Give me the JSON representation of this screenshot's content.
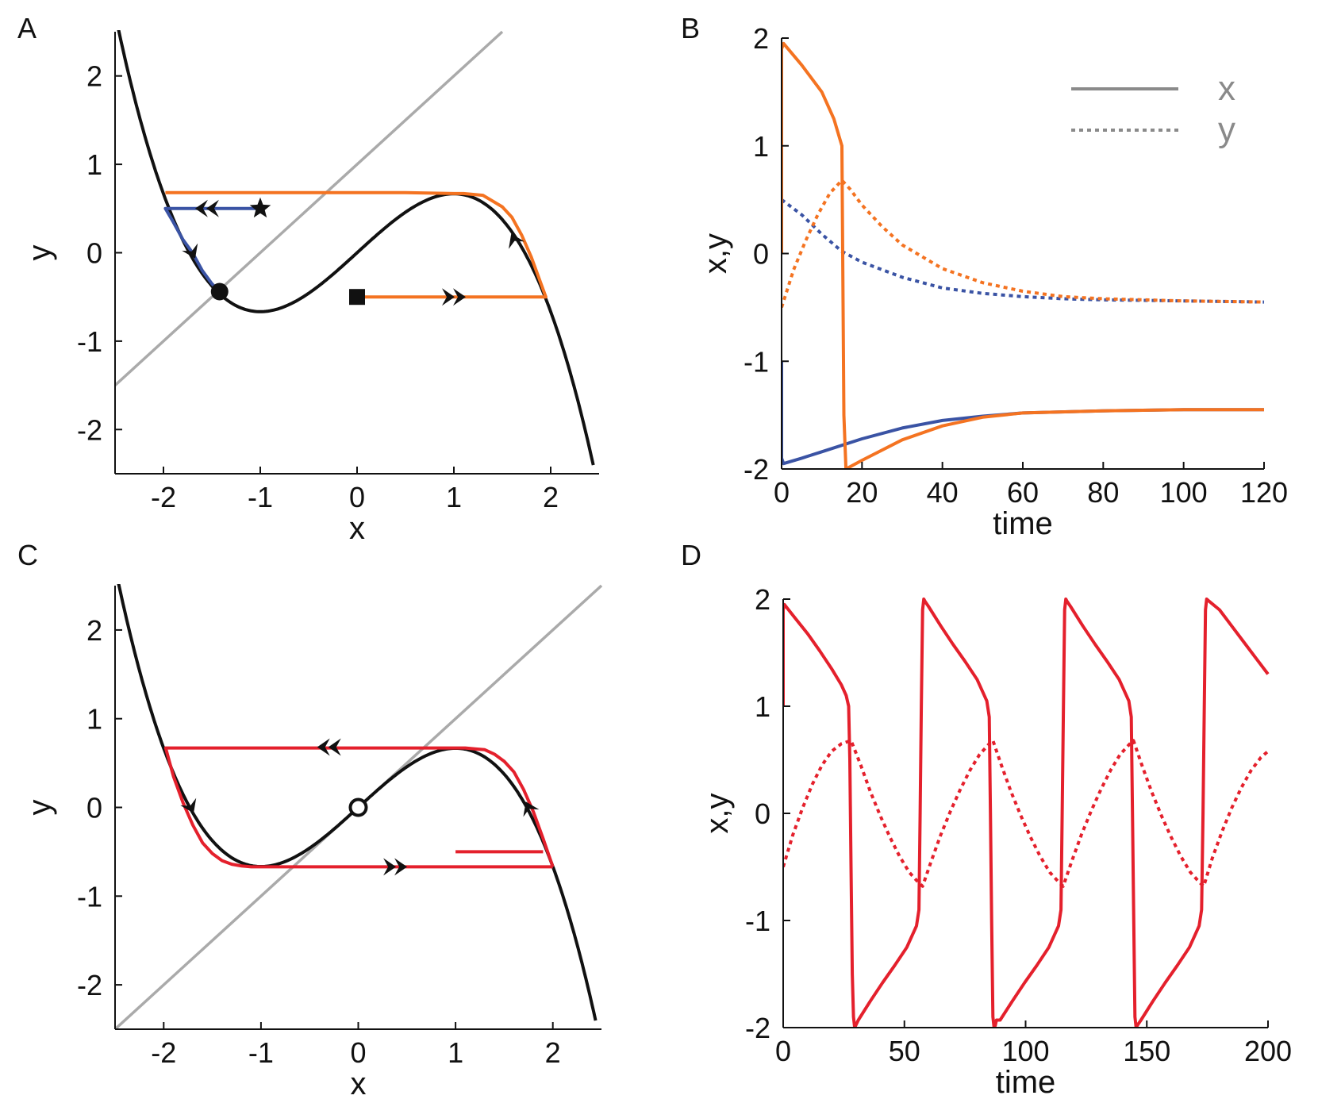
{
  "chart_data": [
    {
      "panel": "A",
      "type": "line",
      "xlabel": "x",
      "ylabel": "y",
      "xlim": [
        -2.5,
        2.5
      ],
      "ylim": [
        -2.5,
        2.5
      ],
      "xticks": [
        -2,
        -1,
        0,
        1,
        2
      ],
      "yticks": [
        -2,
        -1,
        0,
        1,
        2
      ],
      "nullcline_cubic": {
        "color": "#111111",
        "formula": "y = x - x^3/3",
        "x_range": [
          -2.5,
          2.45
        ]
      },
      "nullcline_linear": {
        "color": "#aaaaaa",
        "formula": "y = x + 1",
        "x_range": [
          -2.5,
          1.5
        ]
      },
      "series": [
        {
          "color": "#3a53a4",
          "x": [
            -1,
            -1.98,
            -1.9,
            -1.8,
            -1.7,
            -1.6,
            -1.5,
            -1.42
          ],
          "y": [
            0.5,
            0.5,
            0.35,
            0.15,
            0.0,
            -0.2,
            -0.35,
            -0.44
          ]
        },
        {
          "color": "#f47321",
          "x": [
            0,
            1.95,
            1.9,
            1.8,
            1.7,
            1.6,
            1.5,
            1.3,
            1.1,
            1.0,
            0.5,
            0,
            -1,
            -1.98
          ],
          "y": [
            -0.5,
            -0.5,
            -0.35,
            -0.05,
            0.2,
            0.4,
            0.52,
            0.65,
            0.67,
            0.67,
            0.68,
            0.68,
            0.68,
            0.68
          ]
        }
      ],
      "markers": [
        {
          "shape": "star",
          "x": -1,
          "y": 0.5
        },
        {
          "shape": "square",
          "x": 0,
          "y": -0.5
        },
        {
          "shape": "circle-filled",
          "x": -1.42,
          "y": -0.44
        }
      ]
    },
    {
      "panel": "B",
      "type": "line",
      "xlabel": "time",
      "ylabel": "x,y",
      "xlim": [
        0,
        120
      ],
      "ylim": [
        -2,
        2
      ],
      "xticks": [
        0,
        20,
        40,
        60,
        80,
        100,
        120
      ],
      "yticks": [
        -2,
        -1,
        0,
        1,
        2
      ],
      "legend": {
        "position": "top-right",
        "entries": [
          {
            "label": "x",
            "style": "solid"
          },
          {
            "label": "y",
            "style": "dotted"
          }
        ]
      },
      "series": [
        {
          "color": "#3a53a4",
          "style": "solid",
          "x": [
            0,
            0,
            0.5,
            5,
            10,
            20,
            30,
            40,
            50,
            60,
            80,
            100,
            120
          ],
          "y": [
            -1,
            -1.9,
            -1.95,
            -1.9,
            -1.84,
            -1.72,
            -1.62,
            -1.55,
            -1.51,
            -1.48,
            -1.46,
            -1.45,
            -1.45
          ]
        },
        {
          "color": "#3a53a4",
          "style": "dotted",
          "x": [
            0,
            5,
            10,
            15,
            20,
            30,
            40,
            50,
            60,
            70,
            80,
            100,
            120
          ],
          "y": [
            0.5,
            0.36,
            0.18,
            0.02,
            -0.08,
            -0.22,
            -0.32,
            -0.37,
            -0.4,
            -0.42,
            -0.43,
            -0.44,
            -0.45
          ]
        },
        {
          "color": "#f47321",
          "style": "solid",
          "x": [
            0,
            0,
            0.5,
            5,
            10,
            13,
            15,
            15.2,
            15.5,
            16,
            20,
            30,
            40,
            50,
            60,
            80,
            100,
            120
          ],
          "y": [
            0,
            1.9,
            1.95,
            1.75,
            1.5,
            1.25,
            1.0,
            0.0,
            -1.5,
            -2.0,
            -1.92,
            -1.73,
            -1.6,
            -1.52,
            -1.48,
            -1.46,
            -1.45,
            -1.45
          ]
        },
        {
          "color": "#f47321",
          "style": "dotted",
          "x": [
            0,
            3,
            6,
            9,
            12,
            15,
            17,
            20,
            25,
            30,
            40,
            50,
            60,
            70,
            80,
            100,
            120
          ],
          "y": [
            -0.5,
            -0.15,
            0.12,
            0.36,
            0.56,
            0.68,
            0.6,
            0.45,
            0.25,
            0.08,
            -0.14,
            -0.27,
            -0.35,
            -0.4,
            -0.42,
            -0.44,
            -0.45
          ]
        }
      ]
    },
    {
      "panel": "C",
      "type": "line",
      "xlabel": "x",
      "ylabel": "y",
      "xlim": [
        -2.5,
        2.5
      ],
      "ylim": [
        -2.5,
        2.5
      ],
      "xticks": [
        -2,
        -1,
        0,
        1,
        2
      ],
      "yticks": [
        -2,
        -1,
        0,
        1,
        2
      ],
      "nullcline_cubic": {
        "color": "#111111",
        "formula": "y = x - x^3/3",
        "x_range": [
          -2.5,
          2.45
        ]
      },
      "nullcline_linear": {
        "color": "#aaaaaa",
        "formula": "y = x",
        "x_range": [
          -2.5,
          2.5
        ]
      },
      "series": [
        {
          "color": "#e4202c",
          "x": [
            1,
            1.9
          ],
          "y": [
            -0.5,
            -0.5
          ]
        },
        {
          "color": "#e4202c",
          "x": [
            2.0,
            1.9,
            1.8,
            1.7,
            1.6,
            1.5,
            1.4,
            1.3,
            1.2,
            1.1,
            1.0,
            0.5,
            0,
            -0.5,
            -1,
            -1.98,
            -1.9,
            -1.8,
            -1.7,
            -1.6,
            -1.5,
            -1.4,
            -1.3,
            -1.2,
            -1.1,
            -1.0,
            -0.5,
            0,
            0.5,
            1.0,
            2.0
          ],
          "y": [
            -0.67,
            -0.35,
            -0.05,
            0.2,
            0.4,
            0.52,
            0.6,
            0.65,
            0.66,
            0.67,
            0.67,
            0.67,
            0.67,
            0.67,
            0.67,
            0.67,
            0.35,
            0.05,
            -0.2,
            -0.4,
            -0.52,
            -0.6,
            -0.64,
            -0.66,
            -0.67,
            -0.67,
            -0.67,
            -0.67,
            -0.67,
            -0.67,
            -0.67
          ]
        }
      ],
      "markers": [
        {
          "shape": "circle-open",
          "x": 0,
          "y": 0
        }
      ]
    },
    {
      "panel": "D",
      "type": "line",
      "xlabel": "time",
      "ylabel": "x,y",
      "xlim": [
        0,
        200
      ],
      "ylim": [
        -2,
        2
      ],
      "xticks": [
        0,
        50,
        100,
        150,
        200
      ],
      "yticks": [
        -2,
        -1,
        0,
        1,
        2
      ],
      "period": 58.6,
      "series": [
        {
          "color": "#e4202c",
          "style": "solid",
          "x": [
            0,
            0,
            0.5,
            5,
            10,
            15,
            20,
            24,
            26,
            27,
            27.5,
            28,
            28.5,
            29,
            29.5,
            31,
            36,
            41,
            46,
            51,
            53,
            55,
            56,
            56.5,
            57,
            57.5,
            58,
            58.5,
            60,
            65,
            70,
            75,
            80,
            82,
            84,
            85,
            85.5,
            86,
            86.5,
            87,
            87.5,
            88,
            89.5,
            94.6,
            99.6,
            104.6,
            109.6,
            111.6,
            113.6,
            114.6,
            115.1,
            115.6,
            116.1,
            116.6,
            117.1,
            118.6,
            123.6,
            128.6,
            133.6,
            138.6,
            140.6,
            142.6,
            143.6,
            144.1,
            144.6,
            145.1,
            145.6,
            146.1,
            147.6,
            152.6,
            157.6,
            162.6,
            167.6,
            169.6,
            171.6,
            172.6,
            173.2,
            173.7,
            174.2,
            174.7,
            175.7,
            180,
            185,
            190,
            195,
            200
          ],
          "y": [
            1,
            1.9,
            1.95,
            1.82,
            1.68,
            1.52,
            1.35,
            1.2,
            1.1,
            1.0,
            0.5,
            -0.5,
            -1.5,
            -1.9,
            -2.0,
            -1.93,
            -1.75,
            -1.58,
            -1.42,
            -1.25,
            -1.15,
            -1.05,
            -0.9,
            0.0,
            1.0,
            1.9,
            2.0,
            1.98,
            1.93,
            1.75,
            1.58,
            1.42,
            1.25,
            1.15,
            1.05,
            0.9,
            0.0,
            -1.0,
            -1.9,
            -2.0,
            -1.98,
            -1.93,
            -1.93,
            -1.75,
            -1.58,
            -1.42,
            -1.25,
            -1.15,
            -1.05,
            -0.9,
            0.0,
            1.0,
            1.9,
            2.0,
            1.98,
            1.93,
            1.75,
            1.58,
            1.42,
            1.25,
            1.15,
            1.05,
            0.9,
            0.0,
            -1.0,
            -1.9,
            -2.0,
            -1.98,
            -1.93,
            -1.75,
            -1.58,
            -1.42,
            -1.25,
            -1.15,
            -1.05,
            -0.9,
            0.0,
            1.0,
            1.9,
            2.0,
            1.98,
            1.9,
            1.75,
            1.6,
            1.45,
            1.3
          ]
        },
        {
          "color": "#e4202c",
          "style": "dotted",
          "x": [
            0,
            4,
            8,
            12,
            16,
            20,
            24,
            28,
            32,
            36,
            40,
            44,
            48,
            52,
            56,
            57.5,
            61,
            65,
            69,
            73,
            77,
            81,
            85,
            86.5,
            90,
            94,
            98,
            102,
            106,
            110,
            114,
            115.5,
            119,
            123,
            127,
            131,
            135,
            139,
            143,
            144.5,
            148,
            152,
            156,
            160,
            164,
            168,
            172,
            173.5,
            177,
            181,
            185,
            189,
            193,
            197,
            200
          ],
          "y": [
            -0.5,
            -0.2,
            0.05,
            0.27,
            0.45,
            0.58,
            0.65,
            0.68,
            0.45,
            0.2,
            -0.02,
            -0.22,
            -0.4,
            -0.55,
            -0.65,
            -0.68,
            -0.45,
            -0.2,
            0.02,
            0.22,
            0.4,
            0.55,
            0.65,
            0.68,
            0.45,
            0.2,
            -0.02,
            -0.22,
            -0.4,
            -0.55,
            -0.65,
            -0.68,
            -0.45,
            -0.2,
            0.02,
            0.22,
            0.4,
            0.55,
            0.65,
            0.68,
            0.45,
            0.2,
            -0.02,
            -0.22,
            -0.4,
            -0.55,
            -0.65,
            -0.68,
            -0.42,
            -0.17,
            0.05,
            0.24,
            0.4,
            0.52,
            0.58
          ]
        }
      ]
    }
  ],
  "panel_labels": [
    "A",
    "B",
    "C",
    "D"
  ]
}
